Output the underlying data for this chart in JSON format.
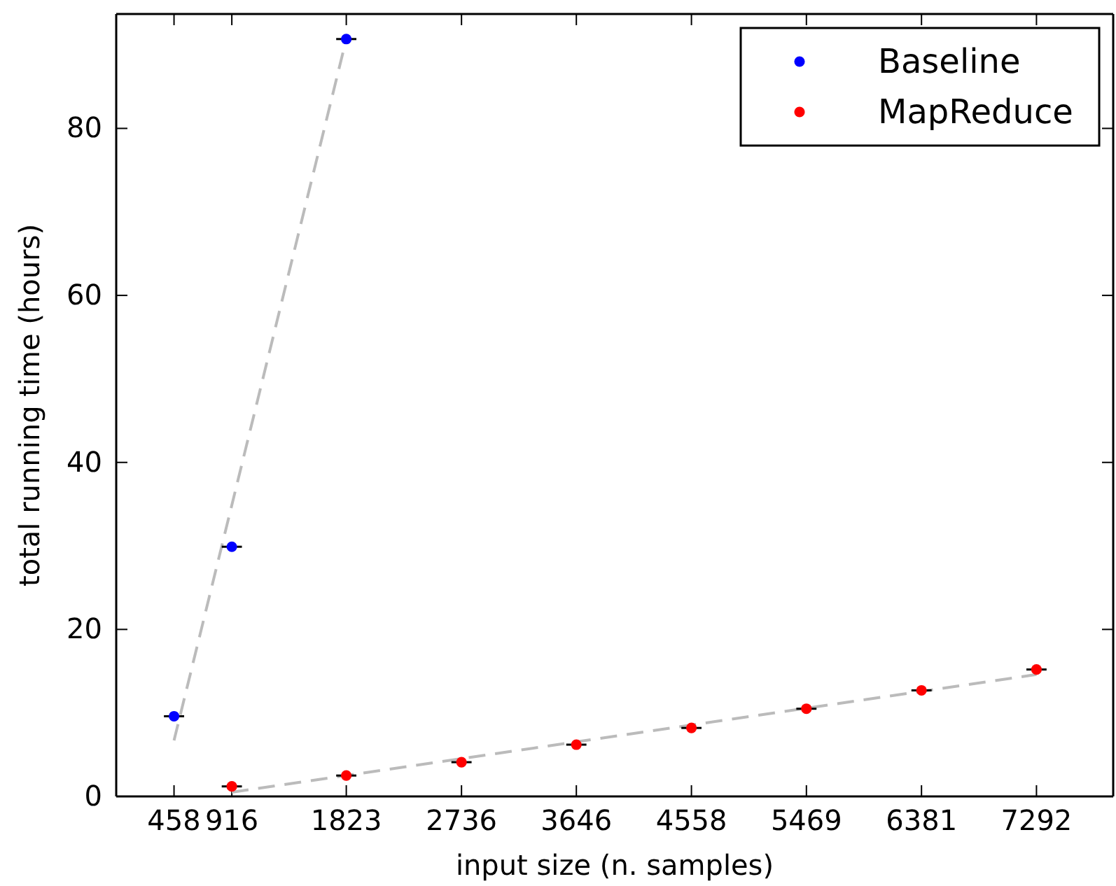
{
  "chart_data": {
    "type": "scatter",
    "xlabel": "input size (n. samples)",
    "ylabel": "total running time (hours)",
    "xlim": [
      0,
      7900
    ],
    "ylim": [
      0,
      93.7
    ],
    "xticks": [
      458,
      916,
      1823,
      2736,
      3646,
      4558,
      5469,
      6381,
      7292
    ],
    "yticks": [
      0,
      20,
      40,
      60,
      80
    ],
    "grid": false,
    "legend": "top right",
    "marker": "circle",
    "series": [
      {
        "name": "Baseline",
        "color": "#0000ff",
        "x": [
          458,
          916,
          1823
        ],
        "values": [
          9.6,
          29.9,
          90.7
        ],
        "xerrors": [
          80,
          80,
          80
        ]
      },
      {
        "name": "MapReduce",
        "color": "#ff0000",
        "x": [
          916,
          1823,
          2736,
          3646,
          4558,
          5469,
          6381,
          7292
        ],
        "values": [
          1.2,
          2.5,
          4.1,
          6.2,
          8.2,
          10.5,
          12.7,
          15.2
        ],
        "xerrors": [
          80,
          80,
          80,
          80,
          80,
          80,
          80,
          80
        ]
      },
      {
        "type": "line",
        "color": "#bbbbbb",
        "line_style": "dashed",
        "marker": "none",
        "x": [
          458,
          1823
        ],
        "values": [
          6.7,
          90.7
        ]
      },
      {
        "type": "line",
        "color": "#bbbbbb",
        "line_style": "dashed",
        "marker": "none",
        "x": [
          916,
          7292
        ],
        "values": [
          0.5,
          14.6
        ]
      }
    ]
  }
}
